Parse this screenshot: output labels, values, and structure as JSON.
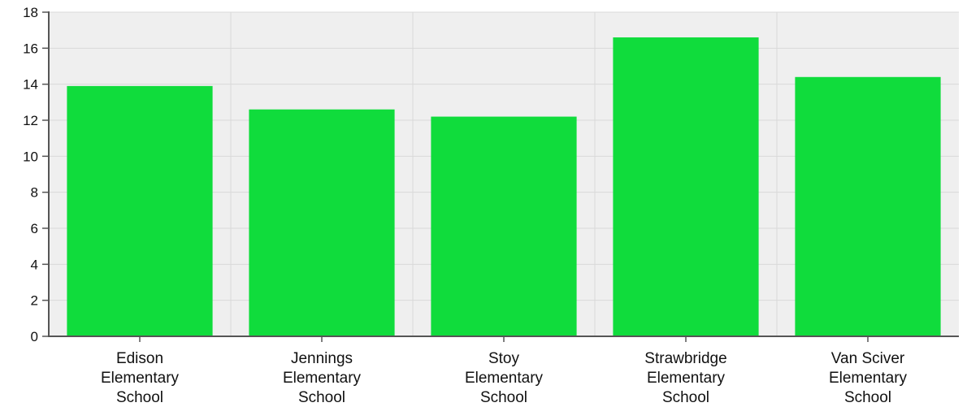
{
  "chart_data": {
    "type": "bar",
    "title": "",
    "xlabel": "",
    "ylabel": "",
    "categories": [
      [
        "Edison",
        "Elementary",
        "School"
      ],
      [
        "Jennings",
        "Elementary",
        "School"
      ],
      [
        "Stoy",
        "Elementary",
        "School"
      ],
      [
        "Strawbridge",
        "Elementary",
        "School"
      ],
      [
        "Van Sciver",
        "Elementary",
        "School"
      ]
    ],
    "values": [
      13.9,
      12.6,
      12.2,
      16.6,
      14.4
    ],
    "ylim": [
      0,
      18
    ],
    "yticks": [
      "0",
      "2",
      "4",
      "6",
      "8",
      "10",
      "12",
      "14",
      "16",
      "18"
    ],
    "grid": true,
    "bar_color": "#10dc3c",
    "plot_background": "#efefef",
    "grid_color": "#d9d9d9"
  }
}
